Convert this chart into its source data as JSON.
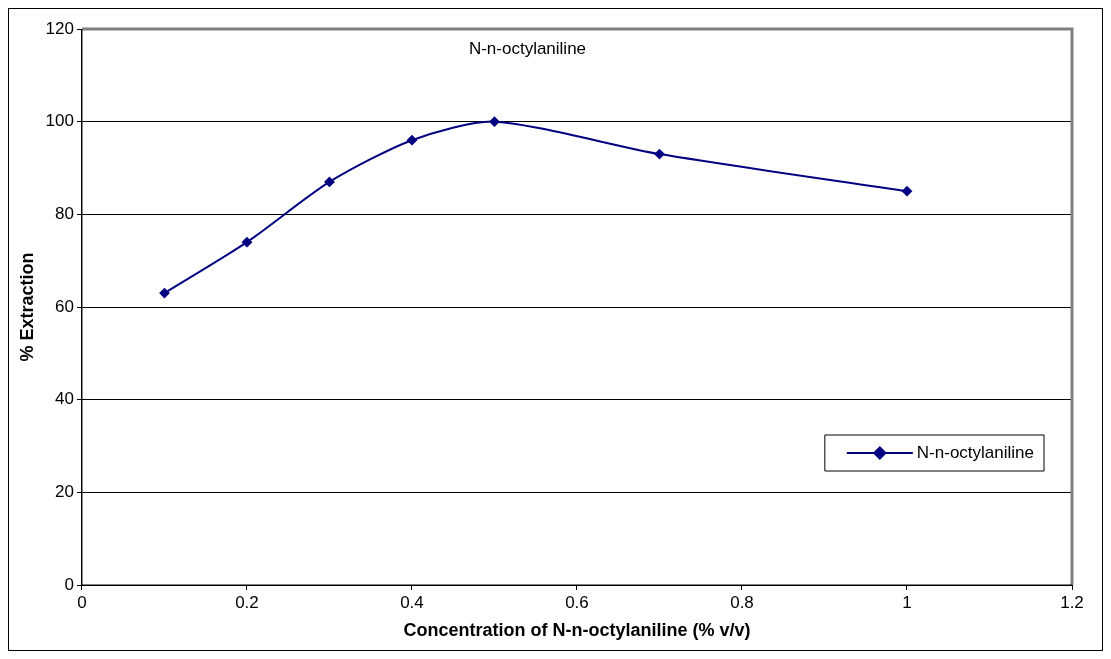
{
  "chart_data": {
    "type": "line",
    "title": "N-n-octylaniline",
    "xlabel": "Concentration of N-n-octylaniline (% v/v)",
    "ylabel": "% Extraction",
    "x": [
      0.1,
      0.2,
      0.3,
      0.4,
      0.5,
      0.7,
      1.0
    ],
    "series": [
      {
        "name": "N-n-octylaniline",
        "color": "#000080",
        "values": [
          63,
          74,
          87,
          96,
          100,
          93,
          85
        ]
      }
    ],
    "xlim": [
      0,
      1.2
    ],
    "xticks": [
      0,
      0.2,
      0.4,
      0.6,
      0.8,
      1,
      1.2
    ],
    "ylim": [
      0,
      120
    ],
    "yticks": [
      0,
      20,
      40,
      60,
      80,
      100,
      120
    ],
    "grid": "y",
    "legend": "bottom right",
    "marker": "diamond",
    "line_style": "solid"
  }
}
